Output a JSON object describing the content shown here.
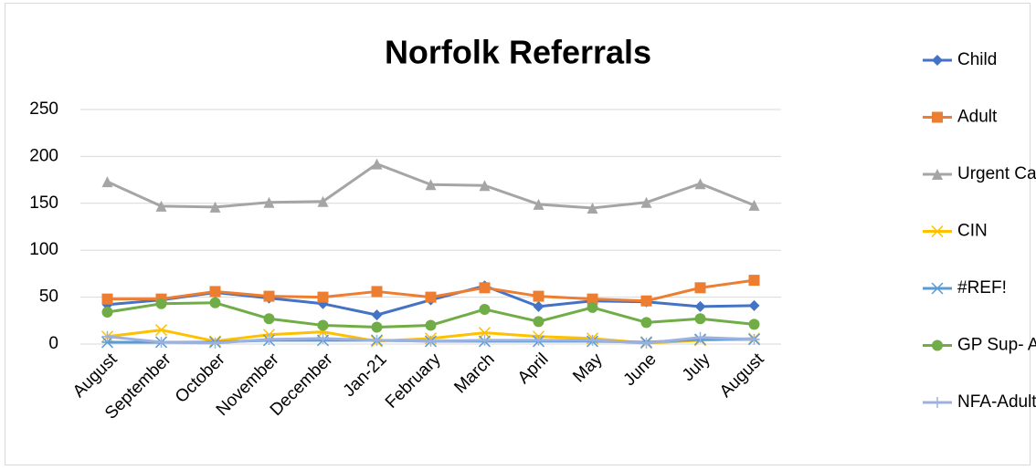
{
  "chart_data": {
    "type": "line",
    "title": "Norfolk Referrals",
    "categories": [
      "August",
      "September",
      "October",
      "November",
      "December",
      "Jan-21",
      "February",
      "March",
      "April",
      "May",
      "June",
      "July",
      "August"
    ],
    "ylim": [
      0,
      250
    ],
    "yticks": [
      0,
      50,
      100,
      150,
      200,
      250
    ],
    "grid": true,
    "legend": "right",
    "series": [
      {
        "name": "Child",
        "color": "#4472c4",
        "marker": "diamond",
        "values": [
          42,
          47,
          55,
          49,
          43,
          31,
          47,
          62,
          40,
          46,
          45,
          40,
          41
        ]
      },
      {
        "name": "Adult",
        "color": "#ed7d31",
        "marker": "square",
        "values": [
          48,
          48,
          56,
          51,
          50,
          56,
          50,
          60,
          51,
          48,
          46,
          60,
          68
        ]
      },
      {
        "name": "Urgent Care",
        "color": "#a5a5a5",
        "marker": "triangle",
        "values": [
          173,
          147,
          146,
          151,
          152,
          192,
          170,
          169,
          149,
          145,
          151,
          171,
          148
        ]
      },
      {
        "name": "CIN",
        "color": "#ffc000",
        "marker": "x",
        "values": [
          8,
          15,
          3,
          10,
          13,
          3,
          6,
          12,
          8,
          6,
          1,
          4,
          6
        ]
      },
      {
        "name": "#REF!",
        "color": "#5b9bd5",
        "marker": "star",
        "values": [
          2,
          2,
          2,
          4,
          4,
          4,
          3,
          3,
          3,
          3,
          2,
          5,
          5
        ]
      },
      {
        "name": "GP Sup- Adult",
        "color": "#70ad47",
        "marker": "circle",
        "values": [
          34,
          43,
          44,
          27,
          20,
          18,
          20,
          37,
          24,
          39,
          23,
          27,
          21
        ]
      },
      {
        "name": "NFA-Adult",
        "color": "#9db1df",
        "marker": "plus",
        "values": [
          8,
          2,
          1,
          5,
          6,
          4,
          3,
          4,
          4,
          4,
          1,
          7,
          5
        ]
      }
    ]
  }
}
